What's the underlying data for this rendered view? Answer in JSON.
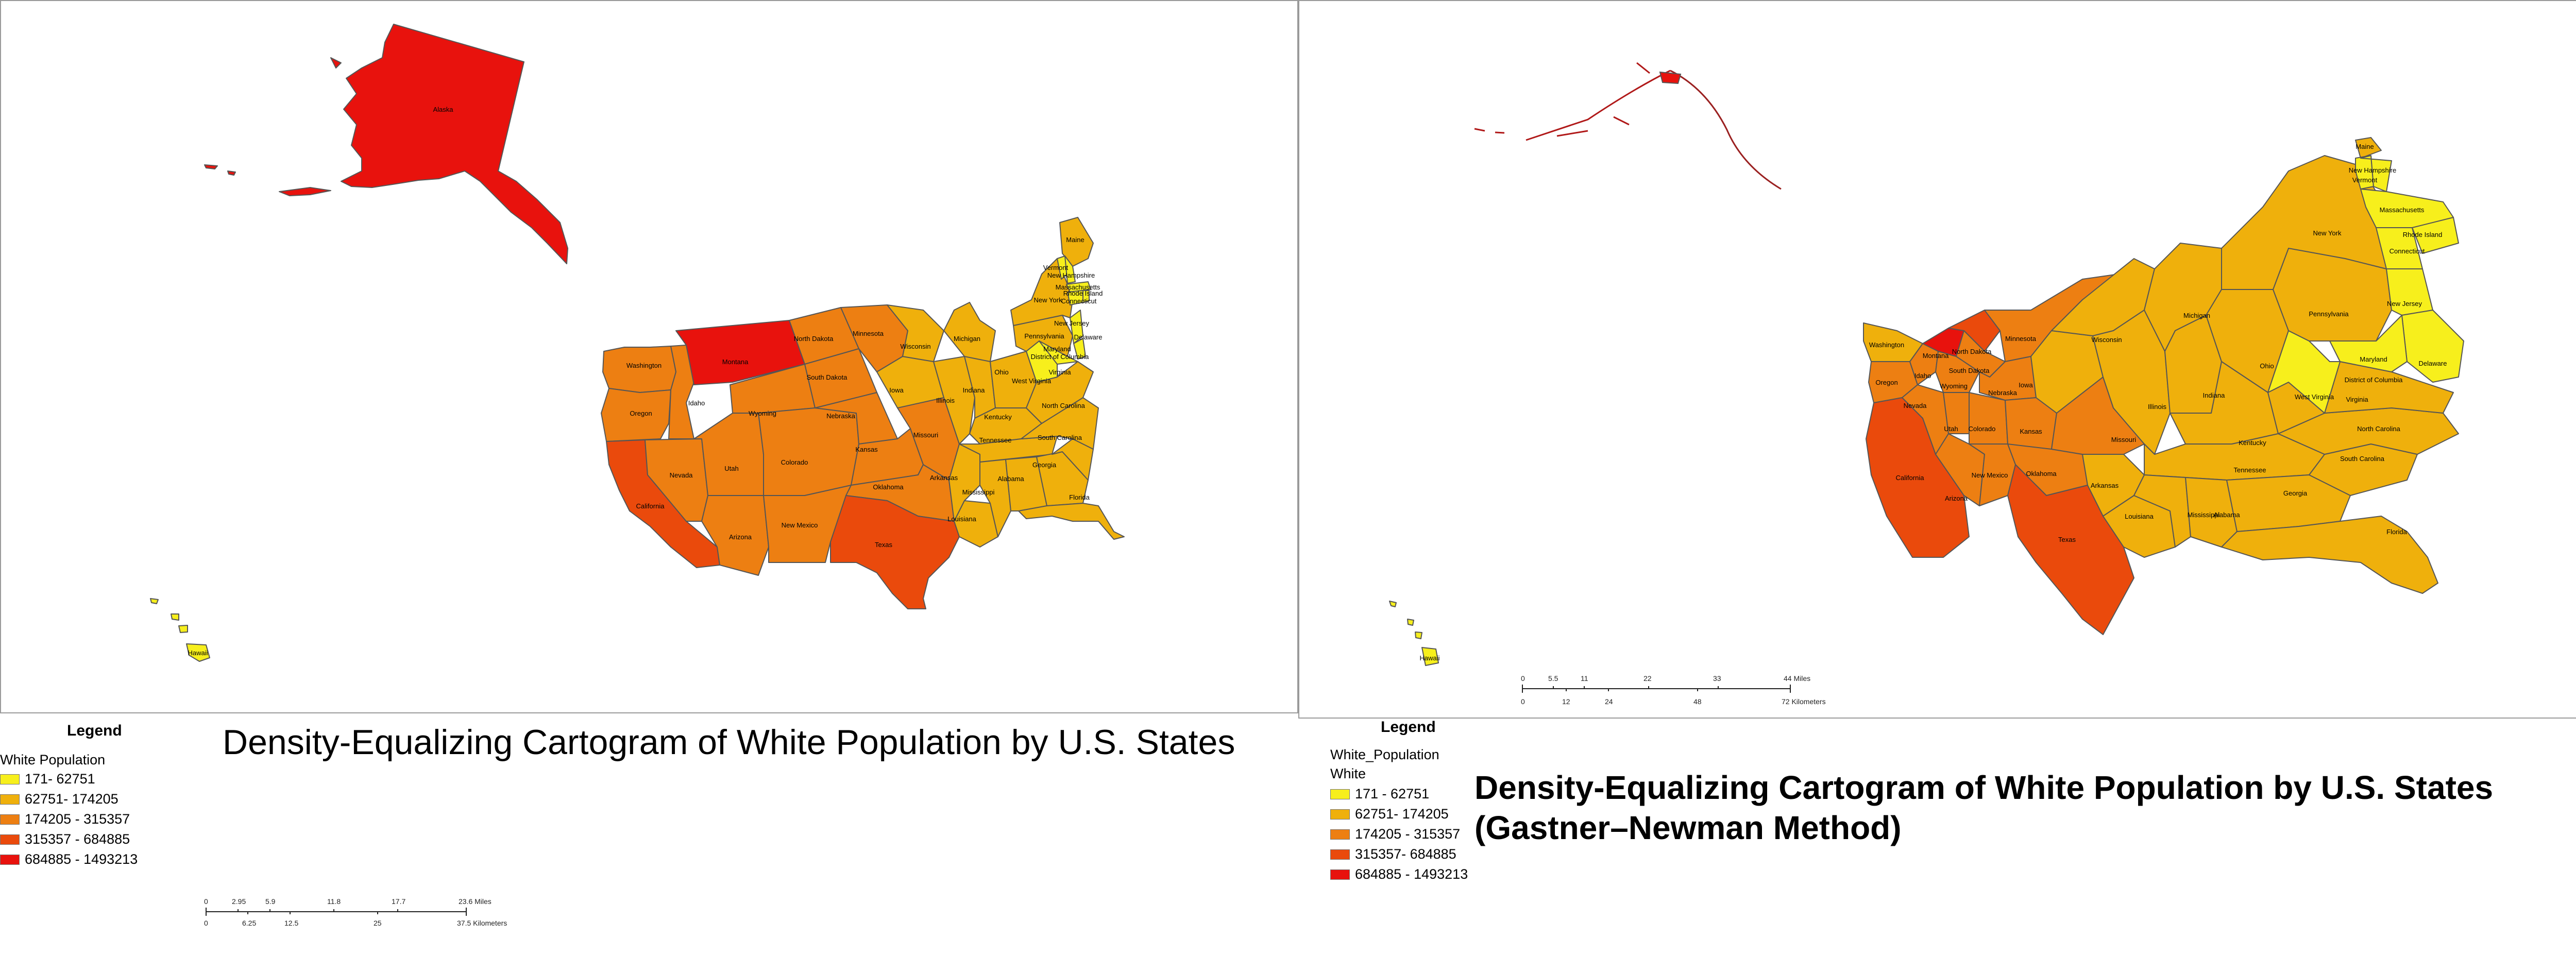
{
  "colors": {
    "class1": "#f7ef1c",
    "class2": "#efb00c",
    "class3": "#ed7f12",
    "class4": "#ea4a0c",
    "class5": "#e8120d"
  },
  "left": {
    "title": "Density-Equalizing Cartogram of White Population by U.S. States",
    "legend": {
      "title": "Legend",
      "field": "White Population",
      "items": [
        "171- 62751",
        "62751- 174205",
        "174205 - 315357",
        "315357 - 684885",
        "684885 - 1493213"
      ]
    },
    "scale": {
      "miles_ticks": [
        "0",
        "2.95",
        "5.9",
        "11.8",
        "17.7",
        "23.6 Miles"
      ],
      "km_ticks": [
        "0",
        "6.25",
        "12.5",
        "25",
        "37.5 Kilometers"
      ]
    },
    "state_labels": [
      "Alaska",
      "Hawaii",
      "Washington",
      "Oregon",
      "California",
      "Nevada",
      "Idaho",
      "Montana",
      "Wyoming",
      "Utah",
      "Arizona",
      "Colorado",
      "New Mexico",
      "North Dakota",
      "South Dakota",
      "Nebraska",
      "Kansas",
      "Oklahoma",
      "Texas",
      "Minnesota",
      "Iowa",
      "Missouri",
      "Arkansas",
      "Louisiana",
      "Wisconsin",
      "Illinois",
      "Michigan",
      "Indiana",
      "Ohio",
      "Kentucky",
      "Tennessee",
      "Mississippi",
      "Alabama",
      "Georgia",
      "Florida",
      "South Carolina",
      "North Carolina",
      "Virginia",
      "West Virginia",
      "Pennsylvania",
      "New York",
      "Maine",
      "Vermont",
      "New Hampshire",
      "Massachusetts",
      "Rhode Island",
      "Connecticut",
      "New Jersey",
      "Delaware",
      "Maryland",
      "District of Columbia"
    ]
  },
  "right": {
    "title_line1": "Density-Equalizing Cartogram of White Population by U.S. States",
    "title_line2": "(Gastner–Newman Method)",
    "legend": {
      "title": "Legend",
      "field": "White_Population",
      "subfield": "White",
      "items": [
        "171 - 62751",
        "62751- 174205",
        "174205 - 315357",
        "315357- 684885",
        "684885 - 1493213"
      ]
    },
    "scale": {
      "miles_ticks": [
        "0",
        "5.5",
        "11",
        "22",
        "33",
        "44 Miles"
      ],
      "km_ticks": [
        "0",
        "12",
        "24",
        "48",
        "72 Kilometers"
      ]
    },
    "state_labels": [
      "Hawaii",
      "Washington",
      "Oregon",
      "California",
      "Nevada",
      "Idaho",
      "Montana",
      "Wyoming",
      "Utah",
      "Arizona",
      "Colorado",
      "New Mexico",
      "North Dakota",
      "South Dakota",
      "Nebraska",
      "Kansas",
      "Oklahoma",
      "Texas",
      "Minnesota",
      "Iowa",
      "Missouri",
      "Arkansas",
      "Louisiana",
      "Wisconsin",
      "Illinois",
      "Michigan",
      "Indiana",
      "Ohio",
      "Kentucky",
      "Tennessee",
      "Mississippi",
      "Alabama",
      "Georgia",
      "Florida",
      "South Carolina",
      "North Carolina",
      "Virginia",
      "West Virginia",
      "Pennsylvania",
      "New York",
      "Maine",
      "Vermont",
      "New Hampshire",
      "Massachusetts",
      "Rhode Island",
      "Connecticut",
      "New Jersey",
      "Delaware",
      "Maryland",
      "District of Columbia"
    ]
  }
}
